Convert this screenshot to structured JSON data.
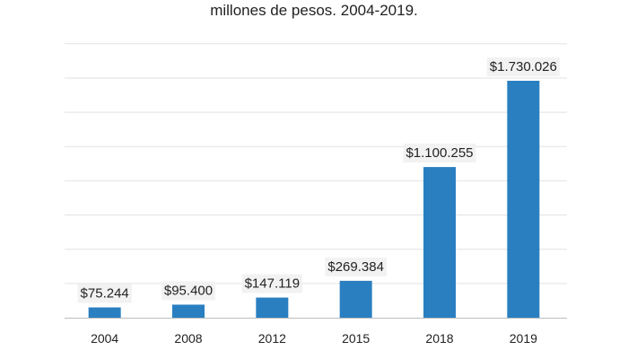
{
  "chart_data": {
    "type": "bar",
    "title": "millones de pesos. 2004-2019.",
    "categories": [
      "2004",
      "2008",
      "2012",
      "2015",
      "2018",
      "2019"
    ],
    "values": [
      75244,
      95400,
      147119,
      269384,
      1100255,
      1730026
    ],
    "data_labels": [
      "$75.244",
      "$95.400",
      "$147.119",
      "$269.384",
      "$1.100.255",
      "$1.730.026"
    ],
    "xlabel": "",
    "ylabel": "",
    "ylim": [
      0,
      2000000
    ],
    "grid": true,
    "legend": "none",
    "bar_color": "#2a7fc1"
  }
}
